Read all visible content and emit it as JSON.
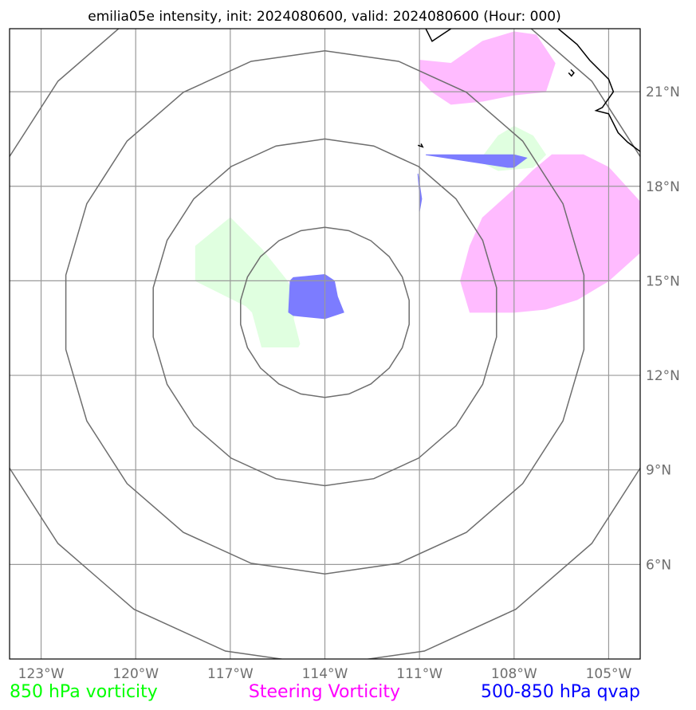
{
  "title": "emilia05e intensity, init: 2024080600, valid: 2024080600 (Hour: 000)",
  "map": {
    "lon_range": [
      -124.0,
      -104.0
    ],
    "lat_range": [
      3.0,
      23.0
    ],
    "center": {
      "lon": -114.0,
      "lat": 14.0
    },
    "gridline_color": "#9a9a9a",
    "ring_color": "#6e6e6e",
    "coastline_color": "#000000",
    "lon_ticks": [
      {
        "value": -123,
        "label": "123°W"
      },
      {
        "value": -120,
        "label": "120°W"
      },
      {
        "value": -117,
        "label": "117°W"
      },
      {
        "value": -114,
        "label": "114°W"
      },
      {
        "value": -111,
        "label": "111°W"
      },
      {
        "value": -108,
        "label": "108°W"
      },
      {
        "value": -105,
        "label": "105°W"
      }
    ],
    "lat_ticks": [
      {
        "value": 21,
        "label": "21°N"
      },
      {
        "value": 18,
        "label": "18°N"
      },
      {
        "value": 15,
        "label": "15°N"
      },
      {
        "value": 12,
        "label": "12°N"
      },
      {
        "value": 9,
        "label": "9°N"
      },
      {
        "value": 6,
        "label": "6°N"
      }
    ],
    "range_rings_deg": [
      2.7,
      5.5,
      8.3,
      11.2
    ]
  },
  "legend": {
    "vorticity_850": {
      "label": "850 hPa vorticity",
      "color": "#00ff00"
    },
    "steering": {
      "label": "Steering Vorticity",
      "color": "#ff00ff"
    },
    "qvap": {
      "label": "500-850 hPa qvap",
      "color": "#0000ff"
    }
  },
  "fields": {
    "vorticity_850": {
      "color": "#e0ffe0",
      "polygons": [
        [
          [
            -118.1,
            16.1
          ],
          [
            -117.0,
            17.0
          ],
          [
            -116.0,
            16.0
          ],
          [
            -115.2,
            15.0
          ],
          [
            -114.9,
            14.4
          ],
          [
            -115.0,
            13.8
          ],
          [
            -114.8,
            13.0
          ],
          [
            -114.85,
            12.9
          ],
          [
            -116.0,
            12.9
          ],
          [
            -116.3,
            14.0
          ],
          [
            -116.5,
            14.2
          ],
          [
            -118.1,
            15.0
          ]
        ],
        [
          [
            -109.1,
            18.8
          ],
          [
            -108.5,
            19.6
          ],
          [
            -108.0,
            19.9
          ],
          [
            -107.4,
            19.6
          ],
          [
            -107.0,
            19.0
          ],
          [
            -107.4,
            18.6
          ],
          [
            -108.5,
            18.5
          ]
        ]
      ]
    },
    "steering": {
      "color": "#ffbbff",
      "polygons": [
        [
          [
            -110.0,
            21.9
          ],
          [
            -109.0,
            22.6
          ],
          [
            -108.0,
            22.9
          ],
          [
            -107.3,
            22.8
          ],
          [
            -106.7,
            21.9
          ],
          [
            -107.0,
            21.0
          ],
          [
            -108.0,
            20.9
          ],
          [
            -109.0,
            20.7
          ],
          [
            -110.0,
            20.6
          ],
          [
            -110.6,
            21.0
          ],
          [
            -111.0,
            21.4
          ],
          [
            -111.0,
            22.0
          ]
        ],
        [
          [
            -104.0,
            17.5
          ],
          [
            -104.0,
            15.9
          ],
          [
            -105.0,
            15.0
          ],
          [
            -106.0,
            14.4
          ],
          [
            -107.0,
            14.1
          ],
          [
            -108.0,
            14.0
          ],
          [
            -108.4,
            14.0
          ],
          [
            -109.4,
            14.0
          ],
          [
            -109.7,
            15.0
          ],
          [
            -109.4,
            16.1
          ],
          [
            -109.0,
            17.0
          ],
          [
            -108.0,
            17.9
          ],
          [
            -107.4,
            18.5
          ],
          [
            -106.8,
            19.0
          ],
          [
            -105.8,
            19.0
          ],
          [
            -105.0,
            18.6
          ]
        ]
      ]
    },
    "qvap": {
      "color": "#7c7cff",
      "polygons": [
        [
          [
            -115.1,
            15.0
          ],
          [
            -115.0,
            15.1
          ],
          [
            -114.0,
            15.2
          ],
          [
            -113.7,
            15.0
          ],
          [
            -113.6,
            14.5
          ],
          [
            -113.4,
            14.0
          ],
          [
            -114.0,
            13.8
          ],
          [
            -115.0,
            13.9
          ],
          [
            -115.15,
            14.0
          ]
        ],
        [
          [
            -110.8,
            19.0
          ],
          [
            -108.0,
            19.0
          ],
          [
            -107.6,
            18.9
          ],
          [
            -108.0,
            18.6
          ],
          [
            -108.2,
            18.6
          ]
        ],
        [
          [
            -111.05,
            18.4
          ],
          [
            -110.98,
            17.6
          ],
          [
            -111.0,
            17.2
          ],
          [
            -110.93,
            17.6
          ]
        ]
      ]
    }
  },
  "coastline": [
    [
      [
        -110.8,
        23.0
      ],
      [
        -110.6,
        22.6
      ],
      [
        -110.3,
        22.8
      ],
      [
        -110.0,
        23.0
      ]
    ],
    [
      [
        -106.6,
        23.0
      ],
      [
        -106.0,
        22.5
      ],
      [
        -105.6,
        22.0
      ],
      [
        -105.0,
        21.4
      ],
      [
        -104.85,
        21.0
      ],
      [
        -105.2,
        20.5
      ],
      [
        -105.4,
        20.4
      ],
      [
        -105.0,
        20.3
      ],
      [
        -104.7,
        19.7
      ],
      [
        -104.4,
        19.4
      ],
      [
        -104.0,
        19.1
      ]
    ],
    [
      [
        -106.27,
        21.6
      ],
      [
        -106.18,
        21.5
      ],
      [
        -106.1,
        21.6
      ],
      [
        -106.2,
        21.7
      ]
    ],
    [
      [
        -111.05,
        19.3
      ],
      [
        -110.9,
        19.25
      ],
      [
        -110.95,
        19.35
      ]
    ]
  ]
}
